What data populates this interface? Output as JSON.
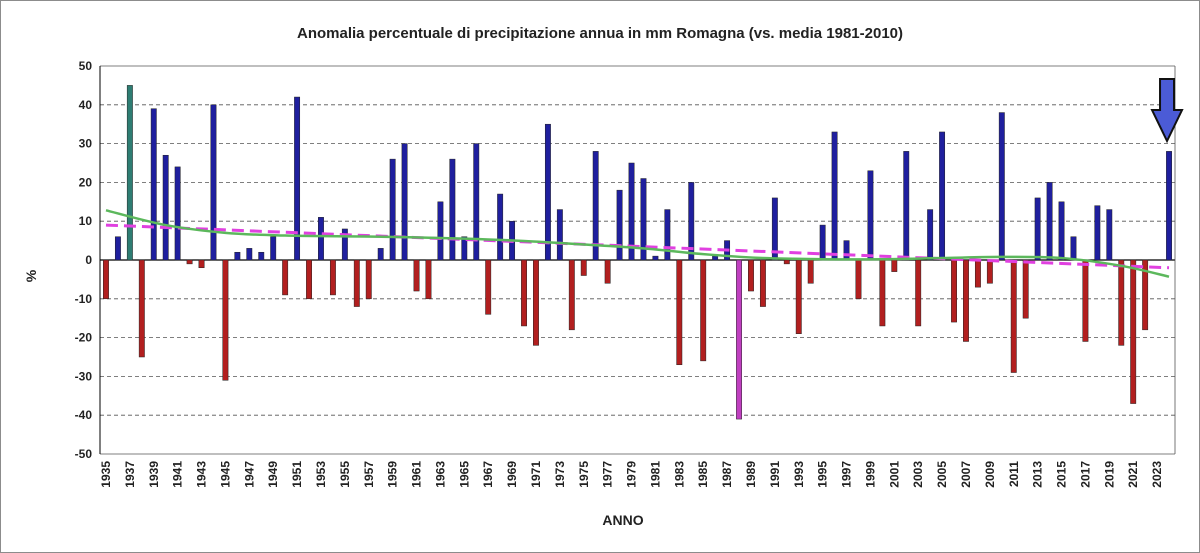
{
  "chart_data": {
    "type": "bar",
    "title": "Anomalia percentuale di precipitazione annua in mm Romagna (vs. media 1981-2010)",
    "xlabel": "ANNO",
    "ylabel": "%",
    "ylim": [
      -50,
      50
    ],
    "yticks": [
      50,
      40,
      30,
      20,
      10,
      0,
      -10,
      -20,
      -30,
      -40,
      -50
    ],
    "grid": true,
    "years": [
      1935,
      1936,
      1937,
      1938,
      1939,
      1940,
      1941,
      1942,
      1943,
      1944,
      1945,
      1946,
      1947,
      1948,
      1949,
      1950,
      1951,
      1952,
      1953,
      1954,
      1955,
      1956,
      1957,
      1958,
      1959,
      1960,
      1961,
      1962,
      1963,
      1964,
      1965,
      1966,
      1967,
      1968,
      1969,
      1970,
      1971,
      1972,
      1973,
      1974,
      1975,
      1976,
      1977,
      1978,
      1979,
      1980,
      1981,
      1982,
      1983,
      1984,
      1985,
      1986,
      1987,
      1988,
      1989,
      1990,
      1991,
      1992,
      1993,
      1994,
      1995,
      1996,
      1997,
      1998,
      1999,
      2000,
      2001,
      2002,
      2003,
      2004,
      2005,
      2006,
      2007,
      2008,
      2009,
      2010,
      2011,
      2012,
      2013,
      2014,
      2015,
      2016,
      2017,
      2018,
      2019,
      2020,
      2021,
      2022,
      2023,
      2024
    ],
    "xtick_labels": [
      "1935",
      "1937",
      "1939",
      "1941",
      "1943",
      "1945",
      "1947",
      "1949",
      "1951",
      "1953",
      "1955",
      "1957",
      "1959",
      "1961",
      "1963",
      "1965",
      "1967",
      "1969",
      "1971",
      "1973",
      "1975",
      "1977",
      "1979",
      "1981",
      "1983",
      "1985",
      "1987",
      "1989",
      "1991",
      "1993",
      "1995",
      "1997",
      "1999",
      "2001",
      "2003",
      "2005",
      "2007",
      "2009",
      "2011",
      "2013",
      "2015",
      "2017",
      "2019",
      "2021",
      "2023"
    ],
    "values": [
      -10,
      6,
      45,
      -25,
      39,
      27,
      24,
      -1,
      -2,
      40,
      -31,
      2,
      3,
      2,
      6,
      -9,
      42,
      -10,
      11,
      -9,
      8,
      -12,
      -10,
      3,
      26,
      30,
      -8,
      -10,
      15,
      26,
      6,
      30,
      -14,
      17,
      10,
      -17,
      -22,
      35,
      13,
      -18,
      -4,
      28,
      -6,
      18,
      25,
      21,
      1,
      13,
      -27,
      20,
      -26,
      1,
      5,
      -41,
      -8,
      -12,
      16,
      -1,
      -19,
      -6,
      9,
      33,
      5,
      -10,
      23,
      -17,
      -3,
      28,
      -17,
      13,
      33,
      -16,
      -21,
      -7,
      -6,
      38,
      -29,
      -15,
      16,
      20,
      15,
      6,
      -21,
      14,
      13,
      -22,
      -37,
      -18,
      0,
      28
    ],
    "highlights": [
      {
        "year": 1937,
        "note": "max",
        "color": "#2e7d73"
      },
      {
        "year": 1988,
        "note": "min",
        "color": "#c03fc0"
      }
    ],
    "colors": {
      "positive": "#1f1f9e",
      "negative": "#b21f1f",
      "trend_linear": "#e040e0",
      "trend_smooth": "#5cb85c",
      "arrow": "#4b5bd6"
    },
    "trend_linear": {
      "style": "dashed",
      "start": 9,
      "end": -2
    },
    "trend_smooth": {
      "style": "solid",
      "points": [
        [
          1935,
          12.8
        ],
        [
          1940,
          9
        ],
        [
          1945,
          7
        ],
        [
          1950,
          6.3
        ],
        [
          1955,
          6.1
        ],
        [
          1960,
          5.9
        ],
        [
          1965,
          5.5
        ],
        [
          1970,
          4.9
        ],
        [
          1975,
          4
        ],
        [
          1980,
          3
        ],
        [
          1985,
          1.5
        ],
        [
          1990,
          0.5
        ],
        [
          1995,
          0.2
        ],
        [
          2000,
          0.2
        ],
        [
          2005,
          0.5
        ],
        [
          2010,
          0.8
        ],
        [
          2015,
          0.5
        ],
        [
          2020,
          -1.5
        ],
        [
          2024,
          -4.3
        ]
      ]
    },
    "annotation": {
      "type": "arrow-down",
      "target_year": 2024,
      "icon": "down-arrow-icon"
    }
  }
}
